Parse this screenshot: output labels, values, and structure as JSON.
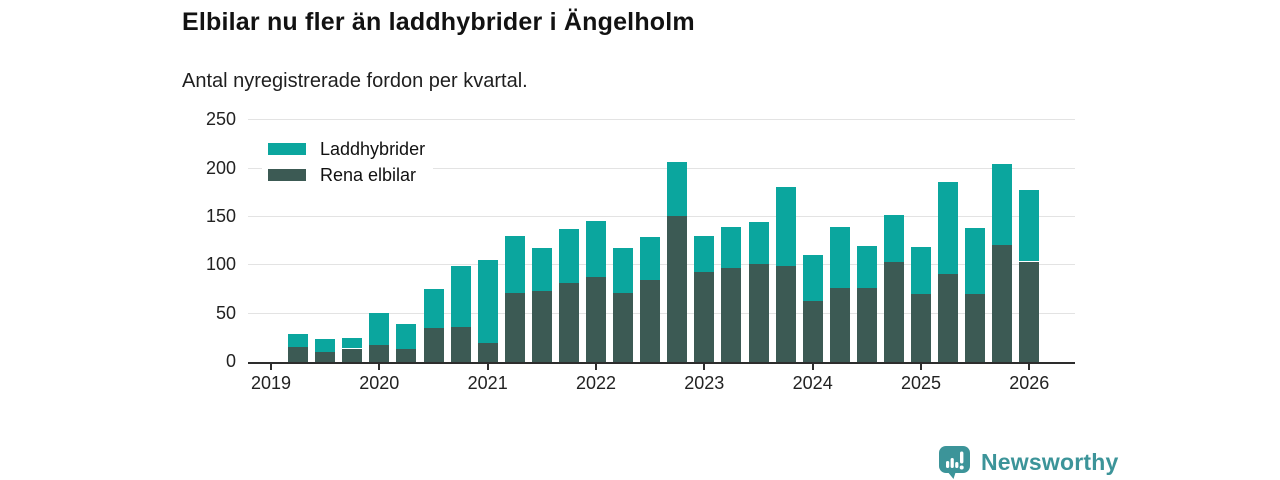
{
  "header": {
    "title": "Elbilar nu fler än laddhybrider i Ängelholm",
    "subtitle": "Antal nyregistrerade fordon per kvartal."
  },
  "legend": [
    {
      "label": "Laddhybrider",
      "color": "#0ba69e"
    },
    {
      "label": "Rena elbilar",
      "color": "#3c5a54"
    }
  ],
  "chart_data": {
    "type": "bar",
    "stacked": true,
    "title": "Elbilar nu fler än laddhybrider i Ängelholm",
    "subtitle": "Antal nyregistrerade fordon per kvartal.",
    "xlabel": "",
    "ylabel": "",
    "ylim": [
      0,
      250
    ],
    "yticks": [
      0,
      50,
      100,
      150,
      200,
      250
    ],
    "grid": "horizontal",
    "legend_position": "top-left-inside",
    "x_tick_labels": [
      "2019",
      "2020",
      "2021",
      "2022",
      "2023",
      "2024",
      "2025",
      "2026"
    ],
    "categories": [
      "2019-Q2",
      "2019-Q3",
      "2019-Q4",
      "2020-Q1",
      "2020-Q2",
      "2020-Q3",
      "2020-Q4",
      "2021-Q1",
      "2021-Q2",
      "2021-Q3",
      "2021-Q4",
      "2022-Q1",
      "2022-Q2",
      "2022-Q3",
      "2022-Q4",
      "2023-Q1",
      "2023-Q2",
      "2023-Q3",
      "2023-Q4",
      "2024-Q1",
      "2024-Q2",
      "2024-Q3",
      "2024-Q4",
      "2025-Q1",
      "2025-Q2",
      "2025-Q3",
      "2025-Q4",
      "2026-Q1"
    ],
    "series": [
      {
        "name": "Rena elbilar",
        "color": "#3c5a54",
        "stack_order": "bottom",
        "values": [
          16,
          10,
          14,
          18,
          13,
          35,
          36,
          20,
          71,
          73,
          82,
          88,
          71,
          85,
          151,
          93,
          97,
          101,
          99,
          63,
          77,
          77,
          103,
          70,
          91,
          70,
          121,
          104
        ]
      },
      {
        "name": "Laddhybrider",
        "color": "#0ba69e",
        "stack_order": "top",
        "values": [
          13,
          14,
          11,
          33,
          26,
          41,
          63,
          86,
          59,
          45,
          56,
          58,
          47,
          44,
          56,
          37,
          43,
          44,
          82,
          48,
          63,
          43,
          49,
          49,
          95,
          69,
          84,
          74
        ]
      }
    ]
  },
  "footer": {
    "brand": "Newsworthy",
    "brand_color": "#3c9499",
    "icon": "newsworthy-barchart-bubble-icon"
  }
}
